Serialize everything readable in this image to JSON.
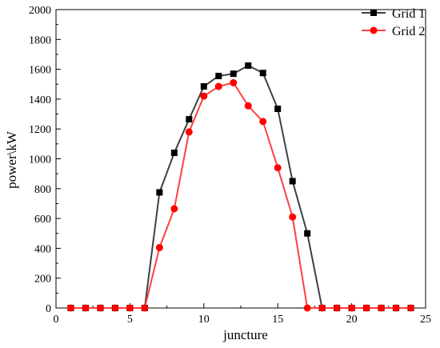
{
  "chart_data": {
    "type": "line",
    "title": "",
    "xlabel": "juncture",
    "ylabel": "power\\kW",
    "xlim": [
      0,
      25
    ],
    "ylim": [
      0,
      2000
    ],
    "x_ticks": [
      0,
      5,
      10,
      15,
      20,
      25
    ],
    "y_ticks": [
      0,
      200,
      400,
      600,
      800,
      1000,
      1200,
      1400,
      1600,
      1800,
      2000
    ],
    "grid": false,
    "legend_position": "top-right",
    "x": [
      1,
      2,
      3,
      4,
      5,
      6,
      7,
      8,
      9,
      10,
      11,
      12,
      13,
      14,
      15,
      16,
      17,
      18,
      19,
      20,
      21,
      22,
      23,
      24
    ],
    "series": [
      {
        "name": "Grid 1",
        "marker": "square",
        "color": "#000000",
        "line_color": "#404040",
        "values": [
          0,
          0,
          0,
          0,
          0,
          0,
          775,
          1040,
          1265,
          1485,
          1555,
          1570,
          1625,
          1575,
          1335,
          850,
          500,
          0,
          0,
          0,
          0,
          0,
          0,
          0
        ]
      },
      {
        "name": "Grid 2",
        "marker": "circle",
        "color": "#ff0000",
        "line_color": "#ff4040",
        "values": [
          0,
          0,
          0,
          0,
          0,
          0,
          405,
          665,
          1180,
          1420,
          1485,
          1510,
          1355,
          1250,
          940,
          610,
          0,
          0,
          0,
          0,
          0,
          0,
          0,
          0
        ]
      }
    ]
  }
}
